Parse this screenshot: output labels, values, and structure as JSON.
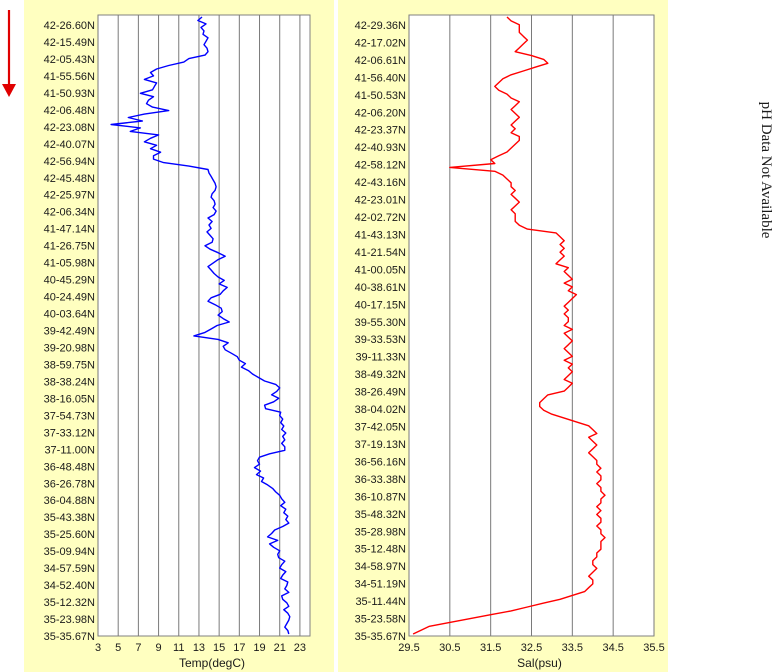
{
  "direction_arrow_color": "#e00000",
  "side_note": "pH Data Not Available",
  "chart_data": [
    {
      "type": "line",
      "orientation": "vertical-profile",
      "background": "#ffffc0",
      "line_color": "#0000ff",
      "xlabel": "Temp(degC)",
      "xlim": [
        3,
        24
      ],
      "xticks": [
        3,
        5,
        7,
        9,
        11,
        13,
        15,
        17,
        19,
        21,
        23
      ],
      "ylabels": [
        "42-26.60N",
        "42-15.49N",
        "42-05.43N",
        "41-55.56N",
        "41-50.93N",
        "42-06.48N",
        "42-23.08N",
        "42-40.07N",
        "42-56.94N",
        "42-45.48N",
        "42-25.97N",
        "42-06.34N",
        "41-47.14N",
        "41-26.75N",
        "41-05.98N",
        "40-45.29N",
        "40-24.49N",
        "40-03.64N",
        "39-42.49N",
        "39-20.98N",
        "38-59.75N",
        "38-38.24N",
        "38-16.05N",
        "37-54.73N",
        "37-33.12N",
        "37-11.00N",
        "36-48.48N",
        "36-26.78N",
        "36-04.88N",
        "35-43.38N",
        "35-25.60N",
        "35-09.94N",
        "34-57.59N",
        "34-52.40N",
        "35-12.32N",
        "35-23.98N",
        "35-35.67N"
      ],
      "grid": "vertical",
      "series": [
        {
          "values": [
            13.3,
            12.9,
            13.7,
            13.2,
            13.5,
            13.4,
            13.9,
            13.7,
            13.5,
            13.8,
            13.9,
            13.6,
            12.0,
            11.5,
            10.0,
            8.8,
            8.2,
            8.5,
            7.6,
            8.8,
            8.6,
            8.4,
            7.2,
            8.5,
            8.0,
            7.8,
            8.4,
            10.0,
            7.6,
            6.0,
            7.4,
            4.3,
            7.2,
            6.2,
            9.0,
            8.2,
            7.6,
            8.8,
            8.2,
            9.2,
            8.5,
            8.5,
            9.5,
            12.0,
            13.9,
            14.0,
            14.2,
            14.4,
            14.6,
            14.7,
            14.6,
            14.3,
            14.2,
            14.5,
            14.6,
            14.4,
            14.7,
            14.5,
            13.9,
            14.3,
            14.0,
            14.2,
            13.8,
            14.1,
            14.4,
            14.3,
            13.6,
            14.1,
            14.9,
            15.6,
            14.9,
            14.4,
            13.9,
            14.2,
            14.5,
            14.9,
            15.5,
            15.0,
            15.8,
            15.4,
            15.1,
            14.2,
            13.9,
            14.6,
            15.2,
            15.3,
            14.9,
            15.4,
            16.0,
            14.8,
            14.2,
            13.6,
            12.5,
            14.9,
            15.9,
            15.4,
            15.6,
            16.2,
            16.8,
            17.0,
            17.6,
            17.2,
            17.9,
            18.3,
            18.9,
            19.5,
            20.6,
            21.0,
            20.7,
            20.2,
            20.9,
            20.4,
            19.5,
            19.6,
            21.1,
            21.0,
            21.3,
            21.1,
            21.4,
            21.2,
            21.6,
            21.3,
            21.5,
            21.2,
            21.5,
            21.5,
            20.0,
            19.0,
            18.8,
            19.0,
            18.5,
            19.1,
            18.7,
            19.4,
            19.2,
            19.8,
            20.3,
            20.6,
            21.0,
            21.2,
            21.5,
            21.1,
            21.6,
            21.4,
            21.8,
            21.6,
            21.9,
            21.3,
            20.5,
            20.2,
            19.8,
            20.8,
            20.0,
            20.4,
            21.0,
            20.8,
            20.9,
            21.5,
            21.2,
            21.0,
            21.6,
            21.3,
            21.1,
            21.8,
            21.7,
            21.5,
            21.9,
            21.2,
            21.3,
            21.7,
            21.9,
            21.4,
            21.8,
            22.0,
            21.9,
            21.7,
            21.5,
            21.8,
            21.9
          ]
        }
      ]
    },
    {
      "type": "line",
      "orientation": "vertical-profile",
      "background": "#ffffc0",
      "line_color": "#ff0000",
      "xlabel": "Sal(psu)",
      "xlim": [
        29.5,
        35.5
      ],
      "xticks": [
        "29.5",
        "30.5",
        "31.5",
        "32.5",
        "33.5",
        "34.5",
        "35.5"
      ],
      "ylabels": [
        "42-29.36N",
        "42-17.02N",
        "42-06.61N",
        "41-56.40N",
        "41-50.53N",
        "42-06.20N",
        "42-23.37N",
        "42-40.93N",
        "42-58.12N",
        "42-43.16N",
        "42-23.01N",
        "42-02.72N",
        "41-43.13N",
        "41-21.54N",
        "41-00.05N",
        "40-38.61N",
        "40-17.15N",
        "39-55.30N",
        "39-33.53N",
        "39-11.33N",
        "38-49.32N",
        "38-26.49N",
        "38-04.02N",
        "37-42.05N",
        "37-19.13N",
        "36-56.16N",
        "36-33.38N",
        "36-10.87N",
        "35-48.32N",
        "35-28.98N",
        "35-12.48N",
        "34-58.97N",
        "34-51.19N",
        "35-11.44N",
        "35-23.58N",
        "35-35.67N"
      ],
      "grid": "vertical",
      "series": [
        {
          "values": [
            31.9,
            32.0,
            32.2,
            32.2,
            32.2,
            32.3,
            32.4,
            32.3,
            32.2,
            32.1,
            32.5,
            32.8,
            32.9,
            32.6,
            32.3,
            32.0,
            31.8,
            31.7,
            31.6,
            31.7,
            31.9,
            32.0,
            32.2,
            32.1,
            32.0,
            32.1,
            32.2,
            32.1,
            32.0,
            32.1,
            32.0,
            32.2,
            32.2,
            32.1,
            32.0,
            31.9,
            31.7,
            31.5,
            31.6,
            30.5,
            31.6,
            31.8,
            31.9,
            32.0,
            32.0,
            32.1,
            32.0,
            32.1,
            32.2,
            32.1,
            32.0,
            32.1,
            32.1,
            32.1,
            32.2,
            32.4,
            33.1,
            33.2,
            33.3,
            33.2,
            33.3,
            33.2,
            33.3,
            33.2,
            33.1,
            33.4,
            33.3,
            33.4,
            33.5,
            33.3,
            33.5,
            33.4,
            33.6,
            33.5,
            33.4,
            33.3,
            33.4,
            33.3,
            33.4,
            33.4,
            33.3,
            33.5,
            33.3,
            33.4,
            33.5,
            33.4,
            33.3,
            33.4,
            33.5,
            33.3,
            33.5,
            33.4,
            33.5,
            33.4,
            33.3,
            33.5,
            33.4,
            33.3,
            32.9,
            32.8,
            32.7,
            32.7,
            32.8,
            33.0,
            33.3,
            33.6,
            33.9,
            34.0,
            34.1,
            33.9,
            34.0,
            34.1,
            34.0,
            33.9,
            34.0,
            34.1,
            34.1,
            34.2,
            34.1,
            34.2,
            34.2,
            34.1,
            34.2,
            34.2,
            34.3,
            34.2,
            34.2,
            34.1,
            34.2,
            34.1,
            34.2,
            34.2,
            34.1,
            34.2,
            34.2,
            34.3,
            34.2,
            34.2,
            34.2,
            34.1,
            34.1,
            34.0,
            34.0,
            34.1,
            34.0,
            33.9,
            34.0,
            34.0,
            33.9,
            33.8,
            33.5,
            33.2,
            32.8,
            32.4,
            32.0,
            31.5,
            31.0,
            30.5,
            30.0,
            29.8,
            29.6
          ]
        }
      ]
    }
  ]
}
